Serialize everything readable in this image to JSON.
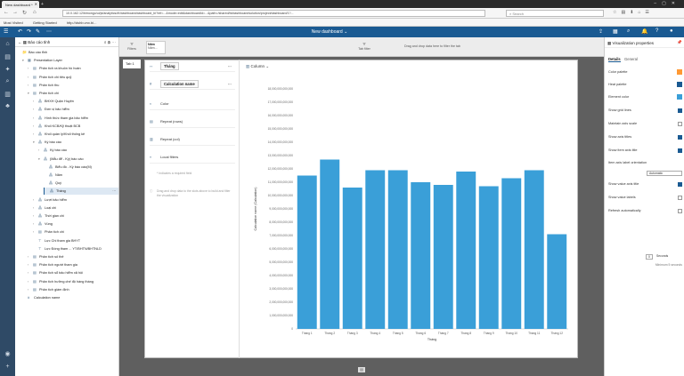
{
  "browser": {
    "tab_title": "New dashboard *",
    "url": "10.0.162.12/bimongo/ui/pi/analytics/#!/dashboard/dashboard_bi?ref=...&mode=edit&dashboardId=...&path=/shared/bi/dashboard/solution/project/dashboard/1?...",
    "search_placeholder": "Search",
    "bookmarks": [
      "Most Visited",
      "Getting Started",
      "http://dshb.vnx.bi..."
    ]
  },
  "app": {
    "dashboard_title": "New dashboard"
  },
  "tree": {
    "header": "Báo cáo tỉnh",
    "items": [
      {
        "label": "Báo cáo tỉnh",
        "indent": 0,
        "tw": "",
        "ti": "📁"
      },
      {
        "label": "Presentation Layer",
        "indent": 1,
        "tw": "▾",
        "ti": "▦"
      },
      {
        "label": "Phân tích ra khuôn hồ hoàn",
        "indent": 2,
        "tw": "›",
        "ti": "▤"
      },
      {
        "label": "Phân tích chi tiêu quỹ",
        "indent": 2,
        "tw": "›",
        "ti": "▤"
      },
      {
        "label": "Phân tích thu",
        "indent": 2,
        "tw": "›",
        "ti": "▤"
      },
      {
        "label": "Phân tích chi",
        "indent": 2,
        "tw": "▾",
        "ti": "▤"
      },
      {
        "label": "BHXH Quận Huyện",
        "indent": 3,
        "tw": "›",
        "ti": "⁂"
      },
      {
        "label": "Đơn vị bảo hiểm",
        "indent": 3,
        "tw": "›",
        "ti": "⁂"
      },
      {
        "label": "Hình thức tham gia bảo hiểm",
        "indent": 3,
        "tw": "›",
        "ti": "⁂"
      },
      {
        "label": "Khối KCB/Kỹ thuật BCB",
        "indent": 3,
        "tw": "›",
        "ti": "⁂"
      },
      {
        "label": "Khối quản lý/Khối thống kê",
        "indent": 3,
        "tw": "›",
        "ti": "⁂"
      },
      {
        "label": "Kỳ báo cáo",
        "indent": 3,
        "tw": "▾",
        "ti": "⁂"
      },
      {
        "label": "Kỳ báo cáo",
        "indent": 4,
        "tw": "›",
        "ti": "⁂"
      },
      {
        "label": "(Mẫu để - Kỳ) báo cáo",
        "indent": 4,
        "tw": "▾",
        "ti": "⁂"
      },
      {
        "label": "Biểu đồ - Kỳ báo cáo(M)",
        "indent": 5,
        "tw": "",
        "ti": "⁂"
      },
      {
        "label": "Năm",
        "indent": 5,
        "tw": "",
        "ti": "⁂"
      },
      {
        "label": "Quý",
        "indent": 5,
        "tw": "",
        "ti": "⁂"
      },
      {
        "label": "Tháng",
        "indent": 5,
        "tw": "",
        "ti": "⁂",
        "selected": true
      },
      {
        "label": "Lượt bảo hiểm",
        "indent": 3,
        "tw": "›",
        "ti": "⁂"
      },
      {
        "label": "Loại chi",
        "indent": 3,
        "tw": "›",
        "ti": "⁂"
      },
      {
        "label": "Thời gian chi",
        "indent": 3,
        "tw": "›",
        "ti": "⁂"
      },
      {
        "label": "Vùng",
        "indent": 3,
        "tw": "›",
        "ti": "⁂"
      },
      {
        "label": "Phân tích chi",
        "indent": 3,
        "tw": "›",
        "ti": "▤"
      },
      {
        "label": "Lực Chi tham gia BHYT",
        "indent": 3,
        "tw": "",
        "ti": "⊤"
      },
      {
        "label": "Lực Đóng tham ... YT/BHTN/BHTNLD",
        "indent": 3,
        "tw": "",
        "ti": "⊤"
      },
      {
        "label": "Phân tích số thẻ",
        "indent": 2,
        "tw": "›",
        "ti": "▤"
      },
      {
        "label": "Phân tích người tham gia",
        "indent": 2,
        "tw": "›",
        "ti": "▤"
      },
      {
        "label": "Phân tích sổ bảo hiểm xã hội",
        "indent": 2,
        "tw": "›",
        "ti": "▤"
      },
      {
        "label": "Phân tích hưởng chế độ hàng tháng",
        "indent": 2,
        "tw": "›",
        "ti": "▤"
      },
      {
        "label": "Phân tích giám định",
        "indent": 2,
        "tw": "›",
        "ti": "▤"
      },
      {
        "label": "Calculation name",
        "indent": 1,
        "tw": "",
        "ti": "#"
      }
    ]
  },
  "fieldbar": {
    "filters_label": "Filters",
    "page_label": "Năm",
    "page_value": "Năm...",
    "drop_hint": "Drag and drop data here to filter the tab",
    "page_filter_label": "Tab filter"
  },
  "page_tab": "Tab 1",
  "config": {
    "x_field": "Tháng",
    "y_field": "Calculation name",
    "color": "Color",
    "repeat_rows": "Repeat (rows)",
    "repeat_cols": "Repeat (col)",
    "local_filters": "Local filters",
    "required_hint": "* Indicates a required field",
    "drag_hint": "Drag and drop data to the slots above to build and filter the visualization"
  },
  "chart_header": {
    "type_label": "Column"
  },
  "chart_data": {
    "type": "bar",
    "categories": [
      "Tháng 1",
      "Tháng 2",
      "Tháng 3",
      "Tháng 4",
      "Tháng 5",
      "Tháng 6",
      "Tháng 7",
      "Tháng 8",
      "Tháng 9",
      "Tháng 10",
      "Tháng 11",
      "Tháng 12"
    ],
    "values": [
      11500000000000,
      12700000000000,
      10600000000000,
      11900000000000,
      11900000000000,
      11000000000000,
      10800000000000,
      11800000000000,
      10700000000000,
      11300000000000,
      11900000000000,
      7100000000000
    ],
    "ylim": [
      0,
      18000000000000
    ],
    "yticks": [
      "0",
      "1,000,000,000,000",
      "2,000,000,000,000",
      "3,000,000,000,000",
      "4,000,000,000,000",
      "5,000,000,000,000",
      "6,000,000,000,000",
      "7,000,000,000,000",
      "8,000,000,000,000",
      "9,000,000,000,000",
      "10,000,000,000,000",
      "11,000,000,000,000",
      "12,000,000,000,000",
      "13,000,000,000,000",
      "14,000,000,000,000",
      "15,000,000,000,000",
      "16,000,000,000,000",
      "17,000,000,000,000",
      "18,000,000,000,000"
    ],
    "xlabel": "Tháng",
    "ylabel": "Calculation name (Calculation)",
    "bar_color": "#3a9fd8",
    "grid": false
  },
  "props": {
    "title": "Visualization properties",
    "tab_general": "Details",
    "tab_other": "General",
    "rows": [
      {
        "label": "Color palette",
        "kind": "swatch",
        "color": "#ff9933"
      },
      {
        "label": "Heat palette",
        "kind": "swatch",
        "color": "#1a5a92"
      },
      {
        "label": "Element color",
        "kind": "swatch",
        "color": "#3a9fd8"
      },
      {
        "label": "Show grid lines",
        "kind": "check",
        "on": true
      },
      {
        "label": "Maintain axis scale",
        "kind": "check",
        "on": false
      },
      {
        "label": "Show axis titles",
        "kind": "check",
        "on": true
      },
      {
        "label": "Show item axis title",
        "kind": "check",
        "on": true
      },
      {
        "label": "Item axis label orientation",
        "kind": "label"
      },
      {
        "label": "",
        "kind": "select",
        "value": "Automatic"
      },
      {
        "label": "Show value axis title",
        "kind": "check",
        "on": true
      },
      {
        "label": "Show value labels",
        "kind": "check",
        "on": false
      },
      {
        "label": "Refresh automatically",
        "kind": "check",
        "on": false
      }
    ],
    "refresh_value": "0",
    "refresh_unit": "Seconds",
    "minimum_hint": "Minimum 5 seconds"
  }
}
